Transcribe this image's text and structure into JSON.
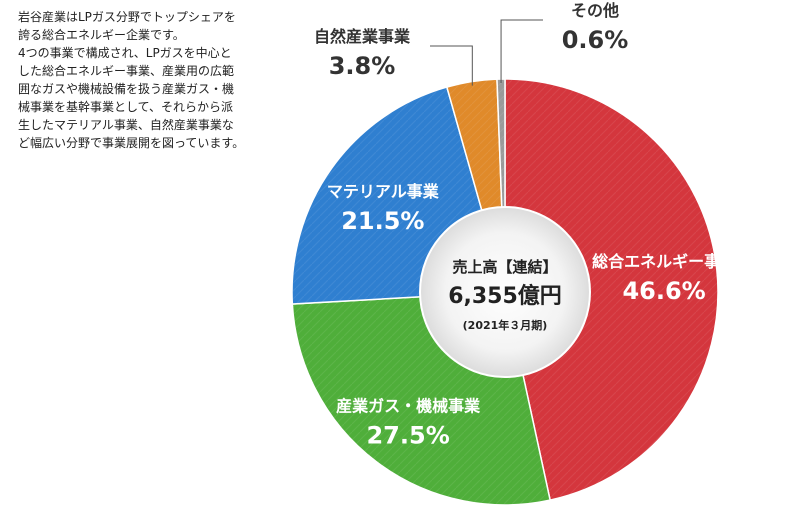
{
  "intro": {
    "paragraph1": "岩谷産業はLPガス分野でトップシェアを\n誇る総合エネルギー企業です。",
    "paragraph2": "4つの事業で構成され、LPガスを中心と\nした総合エネルギー事業、産業用の広範\n囲なガスや機械設備を扱う産業ガス・機\n械事業を基幹事業として、それらから派\n生したマテリアル事業、自然産業事業な\nど幅広い分野で事業展開を図っています。"
  },
  "center": {
    "line1": "売上高【連結】",
    "line2": "6,355億円",
    "line3": "(2021年３月期)"
  },
  "chart_data": {
    "type": "pie",
    "title": "売上高【連結】 6,355億円 (2021年３月期)",
    "unit": "%",
    "start": "12 o'clock",
    "direction": "clockwise",
    "slices": [
      {
        "name": "総合エネルギー事業",
        "value": 46.6,
        "label": "46.6%",
        "color": "#d4363d"
      },
      {
        "name": "産業ガス・機械事業",
        "value": 27.5,
        "label": "27.5%",
        "color": "#4fae3a"
      },
      {
        "name": "マテリアル事業",
        "value": 21.5,
        "label": "21.5%",
        "color": "#2f7fd0"
      },
      {
        "name": "自然産業事業",
        "value": 3.8,
        "label": "3.8%",
        "color": "#e08a2a"
      },
      {
        "name": "その他",
        "value": 0.6,
        "label": "0.6%",
        "color": "#9a9a9a"
      }
    ]
  }
}
